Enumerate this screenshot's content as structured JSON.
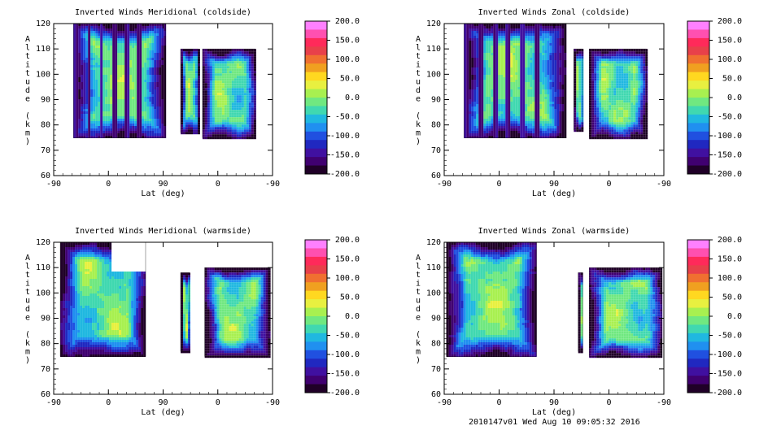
{
  "footer": "2010147v01 Wed Aug 10 09:05:32 2016",
  "colorbar": {
    "ticks": [
      "200.0",
      "150.0",
      "100.0",
      "50.0",
      "0.0",
      "-50.0",
      "-100.0",
      "-150.0",
      "-200.0"
    ],
    "colors": [
      "#ff80ff",
      "#ff50b0",
      "#ff2a5a",
      "#e8404a",
      "#f07030",
      "#f0a020",
      "#ffd820",
      "#e8f040",
      "#a8f050",
      "#70e880",
      "#40d8b0",
      "#20b8e0",
      "#2090f0",
      "#2050e0",
      "#2028c0",
      "#4010a0",
      "#400070",
      "#200028"
    ]
  },
  "chart_data": [
    {
      "type": "heatmap",
      "title": "Inverted Winds Meridional (coldside)",
      "xlabel": "Lat (deg)",
      "ylabel": "Altitude (km)",
      "x_tick_labels": [
        "-90",
        "0",
        "90",
        "0",
        "-90"
      ],
      "y_tick_labels": [
        "60",
        "70",
        "80",
        "90",
        "100",
        "110",
        "120"
      ],
      "ylim": [
        60,
        120
      ],
      "zlim": [
        -200,
        200
      ],
      "colorbar_ticks": [
        "200.0",
        "150.0",
        "100.0",
        "50.0",
        "0.0",
        "-50.0",
        "-100.0",
        "-150.0",
        "-200.0"
      ]
    },
    {
      "type": "heatmap",
      "title": "Inverted Winds Zonal (coldside)",
      "xlabel": "Lat (deg)",
      "ylabel": "Altitude (km)",
      "x_tick_labels": [
        "-90",
        "0",
        "90",
        "0",
        "-90"
      ],
      "y_tick_labels": [
        "60",
        "70",
        "80",
        "90",
        "100",
        "110",
        "120"
      ],
      "ylim": [
        60,
        120
      ],
      "zlim": [
        -200,
        200
      ],
      "colorbar_ticks": [
        "200.0",
        "150.0",
        "100.0",
        "50.0",
        "0.0",
        "-50.0",
        "-100.0",
        "-150.0",
        "-200.0"
      ]
    },
    {
      "type": "heatmap",
      "title": "Inverted Winds Meridional (warmside)",
      "xlabel": "Lat (deg)",
      "ylabel": "Altitude (km)",
      "x_tick_labels": [
        "-90",
        "0",
        "90",
        "0",
        "-90"
      ],
      "y_tick_labels": [
        "60",
        "70",
        "80",
        "90",
        "100",
        "110",
        "120"
      ],
      "ylim": [
        60,
        120
      ],
      "zlim": [
        -200,
        200
      ],
      "colorbar_ticks": [
        "200.0",
        "150.0",
        "100.0",
        "50.0",
        "0.0",
        "-50.0",
        "-100.0",
        "-150.0",
        "-200.0"
      ]
    },
    {
      "type": "heatmap",
      "title": "Inverted Winds Zonal (warmside)",
      "xlabel": "Lat (deg)",
      "ylabel": "Altitude (km)",
      "x_tick_labels": [
        "-90",
        "0",
        "90",
        "0",
        "-90"
      ],
      "y_tick_labels": [
        "60",
        "70",
        "80",
        "90",
        "100",
        "110",
        "120"
      ],
      "ylim": [
        60,
        120
      ],
      "zlim": [
        -200,
        200
      ],
      "colorbar_ticks": [
        "200.0",
        "150.0",
        "100.0",
        "50.0",
        "0.0",
        "-50.0",
        "-100.0",
        "-150.0",
        "-200.0"
      ]
    }
  ]
}
